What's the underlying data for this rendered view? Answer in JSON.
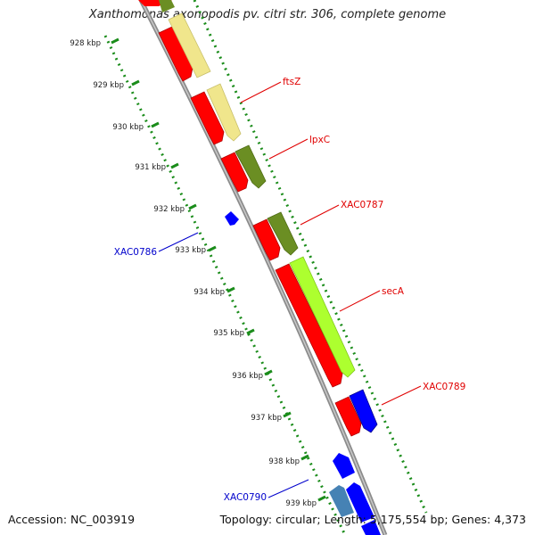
{
  "title": "Xanthomonas axonopodis pv. citri str. 306, complete genome",
  "footer": {
    "accession": "Accession: NC_003919",
    "stats": "Topology: circular; Length: 5,175,554 bp; Genes: 4,373"
  },
  "ticks": [
    "928 kbp",
    "929 kbp",
    "930 kbp",
    "931 kbp",
    "932 kbp",
    "933 kbp",
    "934 kbp",
    "935 kbp",
    "936 kbp",
    "937 kbp",
    "938 kbp",
    "939 kbp"
  ],
  "gene_labels": [
    {
      "text": "ftsZ",
      "color": "#e00000"
    },
    {
      "text": "lpxC",
      "color": "#e00000"
    },
    {
      "text": "XAC0787",
      "color": "#e00000"
    },
    {
      "text": "secA",
      "color": "#e00000"
    },
    {
      "text": "XAC0789",
      "color": "#e00000"
    },
    {
      "text": "XAC0786",
      "color": "#0000cc"
    },
    {
      "text": "XAC0790",
      "color": "#0000cc"
    }
  ],
  "colors": {
    "backbone": "#909090",
    "forward_gene": "#ff0000",
    "reverse_gene": "#0000ff",
    "reverse_gene_alt": "#4682b4",
    "ftsZ_cog": "#f0e68c",
    "lpxC_cog": "#6b8e23",
    "secA_cog": "#adff2f",
    "XAC0789_cog": "#0000ff",
    "dotted_ring": "#1a8c1a"
  }
}
